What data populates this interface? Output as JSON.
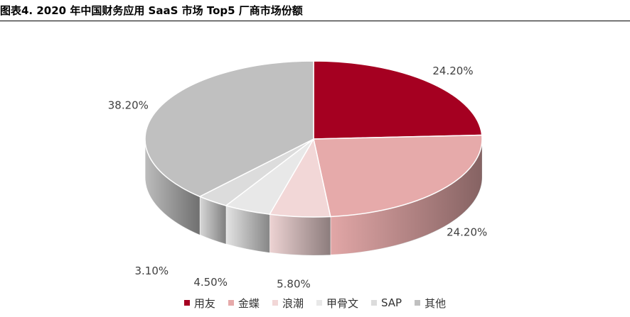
{
  "header": {
    "title": "图表4. 2020 年中国财务应用 SaaS 市场 Top5 厂商市场份额"
  },
  "chart_data": {
    "type": "pie",
    "title": "图表4. 2020 年中国财务应用 SaaS 市场 Top5 厂商市场份额",
    "labels": [
      "用友",
      "金蝶",
      "浪潮",
      "甲骨文",
      "SAP",
      "其他"
    ],
    "values": [
      24.2,
      24.2,
      5.8,
      4.5,
      3.1,
      38.2
    ],
    "data_labels": [
      "24.20%",
      "24.20%",
      "5.80%",
      "4.50%",
      "3.10%",
      "38.20%"
    ],
    "colors": [
      "#a50021",
      "#e6aaaa",
      "#f2d7d7",
      "#e8e8e8",
      "#dcdcdc",
      "#c0c0c0"
    ],
    "style": "3d-pie",
    "legend_position": "bottom"
  },
  "legend": {
    "items": [
      {
        "label": "用友",
        "color": "#a50021"
      },
      {
        "label": "金蝶",
        "color": "#e6aaaa"
      },
      {
        "label": "浪潮",
        "color": "#f2d7d7"
      },
      {
        "label": "甲骨文",
        "color": "#e8e8e8"
      },
      {
        "label": "SAP",
        "color": "#dcdcdc"
      },
      {
        "label": "其他",
        "color": "#c0c0c0"
      }
    ]
  }
}
